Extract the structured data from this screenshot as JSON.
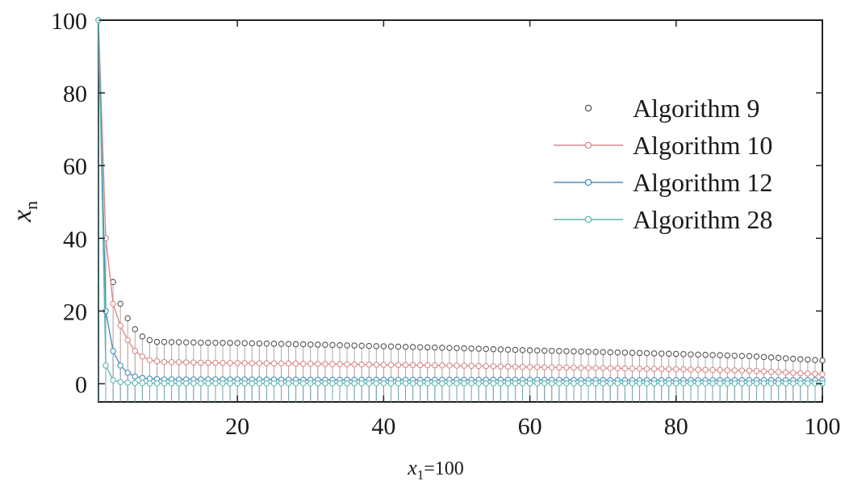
{
  "chart_data": {
    "type": "line",
    "title": "",
    "xlabel": {
      "var": "x",
      "sub": "1",
      "suffix": "=100"
    },
    "ylabel": {
      "var": "x",
      "sub": "n"
    },
    "xlim": [
      1,
      100
    ],
    "ylim": [
      -5,
      100
    ],
    "x_ticks": [
      20,
      40,
      60,
      80,
      100
    ],
    "x_tick_labels": [
      "20",
      "40",
      "60",
      "80",
      "100"
    ],
    "y_ticks": [
      0,
      20,
      40,
      60,
      80,
      100
    ],
    "y_tick_labels": [
      "0",
      "20",
      "40",
      "60",
      "80",
      "100"
    ],
    "grid": false,
    "legend": "top-right",
    "x": [
      1,
      2,
      3,
      4,
      5,
      6,
      7,
      8,
      9,
      10,
      15,
      20,
      30,
      40,
      50,
      60,
      70,
      80,
      90,
      100
    ],
    "series": [
      {
        "name": "Algorithm 9",
        "color": "#555555",
        "marker_only": true,
        "values": [
          100,
          40,
          28,
          22,
          18,
          15,
          13,
          12,
          11.5,
          11.5,
          11.3,
          11.2,
          10.8,
          10.3,
          9.8,
          9.2,
          8.7,
          8.2,
          7.6,
          6.4
        ]
      },
      {
        "name": "Algorithm 10",
        "color": "#d98a8a",
        "marker_only": false,
        "values": [
          100,
          40,
          22,
          16,
          12,
          9,
          7.5,
          6.5,
          6.2,
          6,
          5.8,
          5.7,
          5.5,
          5.2,
          5,
          4.6,
          4.3,
          4,
          3.6,
          2.6
        ]
      },
      {
        "name": "Algorithm 12",
        "color": "#4a90b8",
        "marker_only": false,
        "values": [
          100,
          20,
          9,
          5,
          3,
          2,
          1.6,
          1.4,
          1.3,
          1.2,
          1.2,
          1.2,
          1.1,
          1.1,
          1.1,
          1.1,
          1,
          1,
          1,
          1
        ]
      },
      {
        "name": "Algorithm 28",
        "color": "#5fb8b0",
        "marker_only": false,
        "values": [
          100,
          5,
          1,
          0.5,
          0.3,
          0.2,
          0.2,
          0.1,
          0.1,
          0.1,
          0.1,
          0.1,
          0.1,
          0.1,
          0.1,
          0.1,
          0.1,
          0.1,
          0.1,
          0.1
        ]
      }
    ]
  }
}
